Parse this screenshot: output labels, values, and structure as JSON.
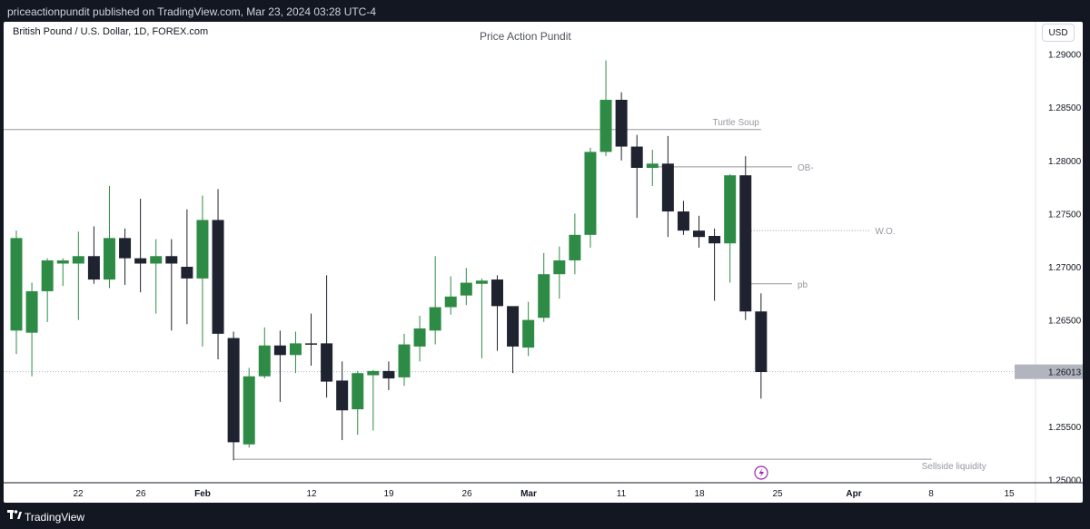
{
  "header": {
    "published_text": "priceactionpundit published on TradingView.com, Mar 23, 2024 03:28 UTC-4"
  },
  "chart_header": {
    "symbol": "British Pound / U.S. Dollar, 1D, FOREX.com",
    "watermark": "Price Action Pundit",
    "currency": "USD"
  },
  "footer": {
    "brand": "TradingView"
  },
  "colors": {
    "bull": "#2e8b45",
    "bear": "#1f2330",
    "grid": "#e0e3eb",
    "annotation": "#9598a1"
  },
  "chart_data": {
    "type": "candlestick",
    "symbol": "GBPUSD",
    "timeframe": "1D",
    "ylim": [
      1.2485,
      1.2915
    ],
    "y_ticks": [
      "1.25000",
      "1.25500",
      "1.26000",
      "1.26500",
      "1.27000",
      "1.27500",
      "1.28000",
      "1.28500",
      "1.29000"
    ],
    "x_ticks": [
      "22",
      "26",
      "Feb",
      "12",
      "19",
      "26",
      "Mar",
      "11",
      "18",
      "25",
      "Apr",
      "8",
      "15"
    ],
    "last_price": "1.26013",
    "candles": [
      {
        "o": 1.264,
        "h": 1.2734,
        "l": 1.2618,
        "c": 1.2727
      },
      {
        "o": 1.2638,
        "h": 1.2685,
        "l": 1.2597,
        "c": 1.2677
      },
      {
        "o": 1.2677,
        "h": 1.2708,
        "l": 1.2648,
        "c": 1.2706
      },
      {
        "o": 1.2703,
        "h": 1.2708,
        "l": 1.2682,
        "c": 1.2706
      },
      {
        "o": 1.2703,
        "h": 1.2733,
        "l": 1.265,
        "c": 1.271
      },
      {
        "o": 1.271,
        "h": 1.2738,
        "l": 1.2684,
        "c": 1.2688
      },
      {
        "o": 1.2688,
        "h": 1.2776,
        "l": 1.268,
        "c": 1.2727
      },
      {
        "o": 1.2727,
        "h": 1.2736,
        "l": 1.2683,
        "c": 1.2708
      },
      {
        "o": 1.2708,
        "h": 1.2764,
        "l": 1.2676,
        "c": 1.2703
      },
      {
        "o": 1.2703,
        "h": 1.2726,
        "l": 1.2656,
        "c": 1.271
      },
      {
        "o": 1.271,
        "h": 1.2726,
        "l": 1.264,
        "c": 1.2703
      },
      {
        "o": 1.27,
        "h": 1.2754,
        "l": 1.2646,
        "c": 1.2689
      },
      {
        "o": 1.2689,
        "h": 1.2767,
        "l": 1.2625,
        "c": 1.2744
      },
      {
        "o": 1.2744,
        "h": 1.2773,
        "l": 1.2613,
        "c": 1.2637
      },
      {
        "o": 1.2633,
        "h": 1.2639,
        "l": 1.2518,
        "c": 1.2535
      },
      {
        "o": 1.2533,
        "h": 1.2605,
        "l": 1.253,
        "c": 1.2597
      },
      {
        "o": 1.2597,
        "h": 1.2643,
        "l": 1.2595,
        "c": 1.2626
      },
      {
        "o": 1.2626,
        "h": 1.264,
        "l": 1.2573,
        "c": 1.2617
      },
      {
        "o": 1.2617,
        "h": 1.2639,
        "l": 1.26,
        "c": 1.2628
      },
      {
        "o": 1.2628,
        "h": 1.2656,
        "l": 1.2607,
        "c": 1.2627
      },
      {
        "o": 1.2628,
        "h": 1.2692,
        "l": 1.2577,
        "c": 1.2592
      },
      {
        "o": 1.2593,
        "h": 1.2611,
        "l": 1.2537,
        "c": 1.2565
      },
      {
        "o": 1.2566,
        "h": 1.2602,
        "l": 1.2542,
        "c": 1.26
      },
      {
        "o": 1.2598,
        "h": 1.2603,
        "l": 1.2546,
        "c": 1.2602
      },
      {
        "o": 1.2602,
        "h": 1.2611,
        "l": 1.2584,
        "c": 1.2595
      },
      {
        "o": 1.2596,
        "h": 1.2637,
        "l": 1.2588,
        "c": 1.2627
      },
      {
        "o": 1.2625,
        "h": 1.2654,
        "l": 1.2611,
        "c": 1.2642
      },
      {
        "o": 1.264,
        "h": 1.271,
        "l": 1.2627,
        "c": 1.2662
      },
      {
        "o": 1.2662,
        "h": 1.2691,
        "l": 1.2655,
        "c": 1.2672
      },
      {
        "o": 1.2673,
        "h": 1.2699,
        "l": 1.2664,
        "c": 1.2685
      },
      {
        "o": 1.2684,
        "h": 1.2689,
        "l": 1.2614,
        "c": 1.2687
      },
      {
        "o": 1.2688,
        "h": 1.2692,
        "l": 1.2621,
        "c": 1.2663
      },
      {
        "o": 1.2663,
        "h": 1.2662,
        "l": 1.26,
        "c": 1.2625
      },
      {
        "o": 1.2624,
        "h": 1.2667,
        "l": 1.2616,
        "c": 1.265
      },
      {
        "o": 1.2652,
        "h": 1.2713,
        "l": 1.2648,
        "c": 1.2693
      },
      {
        "o": 1.2693,
        "h": 1.2719,
        "l": 1.267,
        "c": 1.2706
      },
      {
        "o": 1.2706,
        "h": 1.275,
        "l": 1.2693,
        "c": 1.273
      },
      {
        "o": 1.273,
        "h": 1.2812,
        "l": 1.2718,
        "c": 1.2808
      },
      {
        "o": 1.2808,
        "h": 1.2894,
        "l": 1.2804,
        "c": 1.2857
      },
      {
        "o": 1.2857,
        "h": 1.2864,
        "l": 1.28,
        "c": 1.2813
      },
      {
        "o": 1.2813,
        "h": 1.2824,
        "l": 1.2746,
        "c": 1.2793
      },
      {
        "o": 1.2793,
        "h": 1.281,
        "l": 1.2776,
        "c": 1.2797
      },
      {
        "o": 1.2797,
        "h": 1.2823,
        "l": 1.2728,
        "c": 1.2752
      },
      {
        "o": 1.2752,
        "h": 1.2762,
        "l": 1.273,
        "c": 1.2734
      },
      {
        "o": 1.2734,
        "h": 1.2748,
        "l": 1.2718,
        "c": 1.2728
      },
      {
        "o": 1.2729,
        "h": 1.2736,
        "l": 1.2668,
        "c": 1.2722
      },
      {
        "o": 1.2722,
        "h": 1.2787,
        "l": 1.2685,
        "c": 1.2786
      },
      {
        "o": 1.2786,
        "h": 1.2804,
        "l": 1.265,
        "c": 1.2658
      },
      {
        "o": 1.2658,
        "h": 1.2675,
        "l": 1.2576,
        "c": 1.2601
      }
    ],
    "annotations": [
      {
        "label": "Turtle Soup",
        "price": 1.2829,
        "style": "solid",
        "from": 0,
        "to": 48,
        "text_at": 48
      },
      {
        "label": "OB-",
        "price": 1.2794,
        "style": "solid",
        "from": 41,
        "to": 50,
        "text_at": 50
      },
      {
        "label": "W.O.",
        "price": 1.2734,
        "style": "dotted",
        "from": 47,
        "to": 55,
        "text_at": 55
      },
      {
        "label": "pb",
        "price": 1.2684,
        "style": "solid",
        "from": 47,
        "to": 50,
        "text_at": 50
      },
      {
        "label": "Sellside liquidity",
        "price": 1.2519,
        "style": "solid",
        "from": 14,
        "to": 59,
        "text_at": 58
      }
    ],
    "grid": false,
    "legend": "none"
  }
}
